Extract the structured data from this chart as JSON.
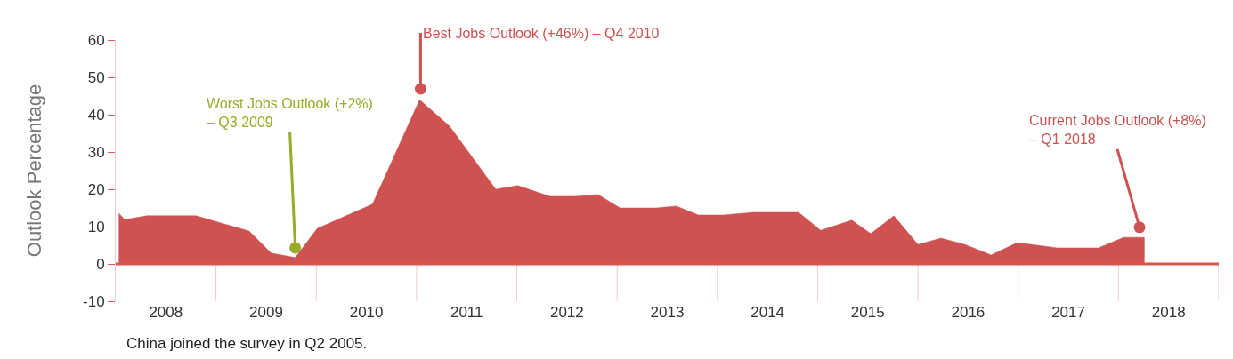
{
  "chart_data": {
    "type": "area",
    "ylabel": "Outlook Percentage",
    "x": [
      2008.03,
      2008.09,
      2008.31,
      2008.8,
      2009.33,
      2009.55,
      2009.79,
      2010.01,
      2010.56,
      2011.03,
      2011.33,
      2011.79,
      2012.01,
      2012.33,
      2012.58,
      2012.81,
      2013.03,
      2013.39,
      2013.59,
      2013.81,
      2014.06,
      2014.36,
      2014.81,
      2015.03,
      2015.34,
      2015.53,
      2015.76,
      2016.0,
      2016.23,
      2016.47,
      2016.73,
      2016.99,
      2017.39,
      2017.8,
      2018.05,
      2018.26
    ],
    "series": [
      {
        "color": "#cd5250",
        "values": [
          13.6,
          11.9,
          12.9,
          12.9,
          8.8,
          2.9,
          1.7,
          9.5,
          16,
          44,
          36.9,
          20,
          21,
          18.1,
          18.1,
          18.6,
          15,
          15,
          15.5,
          13.1,
          13.1,
          13.8,
          13.8,
          9,
          11.7,
          8.1,
          12.9,
          5.2,
          6.9,
          5.2,
          2.4,
          5.7,
          4.3,
          4.3,
          7.1,
          7.1
        ]
      },
      {
        "type": "scatter",
        "marker": "circle",
        "x": [
          2009.79,
          2011.04,
          2018.21
        ],
        "values": [
          4.3,
          46.9,
          9.8
        ],
        "colors": [
          "#9aab2a",
          "#cd5250",
          "#cd5250"
        ]
      }
    ],
    "xlim": [
      2008,
      2019
    ],
    "xticks": [
      {
        "value": 2008.5,
        "label": "2008"
      },
      {
        "value": 2009.5,
        "label": "2009"
      },
      {
        "value": 2010.5,
        "label": "2010"
      },
      {
        "value": 2011.5,
        "label": "2011"
      },
      {
        "value": 2012.5,
        "label": "2012"
      },
      {
        "value": 2013.5,
        "label": "2013"
      },
      {
        "value": 2014.5,
        "label": "2014"
      },
      {
        "value": 2015.5,
        "label": "2015"
      },
      {
        "value": 2016.5,
        "label": "2016"
      },
      {
        "value": 2017.5,
        "label": "2017"
      },
      {
        "value": 2018.5,
        "label": "2018"
      }
    ],
    "ylim": [
      -10,
      60
    ],
    "yticks": [
      -10,
      0,
      10,
      20,
      30,
      40,
      50,
      60
    ],
    "ref_lines": [
      {
        "axis": "y",
        "value": 0,
        "color": "#d9534f"
      },
      {
        "axis": "x",
        "value": 2009,
        "color": "#f3caca"
      },
      {
        "axis": "x",
        "value": 2010,
        "color": "#f3caca"
      },
      {
        "axis": "x",
        "value": 2011,
        "color": "#f3caca"
      },
      {
        "axis": "x",
        "value": 2012,
        "color": "#f3caca"
      },
      {
        "axis": "x",
        "value": 2013,
        "color": "#f3caca"
      },
      {
        "axis": "x",
        "value": 2014,
        "color": "#f3caca"
      },
      {
        "axis": "x",
        "value": 2015,
        "color": "#f3caca"
      },
      {
        "axis": "x",
        "value": 2016,
        "color": "#f3caca"
      },
      {
        "axis": "x",
        "value": 2017,
        "color": "#f3caca"
      },
      {
        "axis": "x",
        "value": 2018,
        "color": "#f3caca"
      },
      {
        "axis": "x",
        "value": 2019,
        "color": "#f3caca"
      }
    ],
    "annotations": [
      {
        "text": "Worst Jobs Outlook (+2%)\n– Q3 2009",
        "x": 2009.79,
        "y": 4.3
      },
      {
        "text": "Best Jobs Outlook (+46%) – Q4 2010",
        "x": 2011.04,
        "y": 46.9
      },
      {
        "text": "Current Jobs Outlook (+8%)\n– Q1 2018",
        "x": 2018.21,
        "y": 9.8
      },
      "China joined the survey in Q2 2005."
    ]
  }
}
